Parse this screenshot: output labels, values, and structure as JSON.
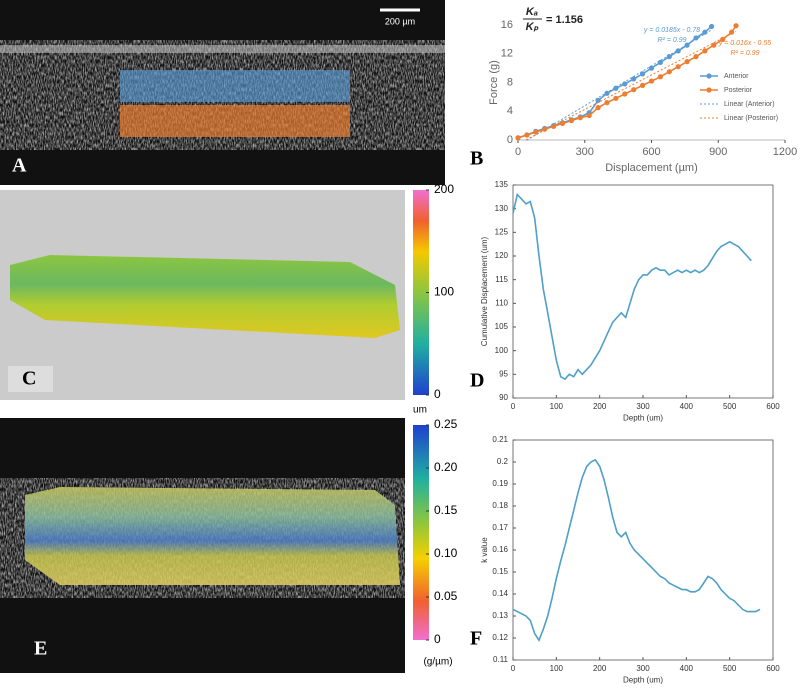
{
  "panel_labels": [
    "A",
    "B",
    "C",
    "D",
    "E",
    "F"
  ],
  "scale_bar": "200 µm",
  "colorbars": [
    {
      "ticks": [
        0,
        100,
        200
      ]
    },
    {
      "unit_top": "um",
      "unit_bottom": "(g/µm)",
      "ticks": [
        0,
        0.05,
        {
          "value": 0.1,
          "label": "0.10"
        },
        0.15,
        {
          "value": 0.2,
          "label": "0.20"
        },
        0.25
      ]
    }
  ],
  "chart_data": [
    {
      "type": "line",
      "xlabel": "Displacement (µm)",
      "ylabel": "Force (g)",
      "xlim": [
        0,
        1200
      ],
      "xticks": [
        0,
        300,
        600,
        900,
        1200
      ],
      "ylim": [
        0,
        16
      ],
      "yticks": [
        0,
        4,
        8,
        12,
        16
      ],
      "legend": "right",
      "ratio": {
        "numerator": "Kₐ",
        "denominator": "Kₚ",
        "value": "= 1.156"
      },
      "annotations": [
        {
          "text": "y = 0.0185x - 0.78",
          "color": "#5b9bd5"
        },
        {
          "text": "R² = 0.99",
          "color": "#5b9bd5"
        },
        {
          "text": "y = 0.016x - 0.55",
          "color": "#ed7d31"
        },
        {
          "text": "R² = 0.99",
          "color": "#ed7d31"
        }
      ],
      "series": [
        {
          "name": "Anterior",
          "color": "#5b9bd5",
          "marker": true,
          "x": [
            0,
            40,
            80,
            120,
            160,
            200,
            240,
            280,
            320,
            360,
            400,
            440,
            480,
            520,
            560,
            600,
            640,
            680,
            720,
            760,
            800,
            840,
            870
          ],
          "values": [
            0.3,
            0.7,
            1.2,
            1.6,
            2.0,
            2.4,
            2.8,
            3.2,
            3.8,
            5.5,
            6.5,
            7.2,
            7.8,
            8.5,
            9.2,
            10.0,
            10.8,
            11.6,
            12.4,
            13.2,
            14.2,
            15.0,
            15.8
          ]
        },
        {
          "name": "Posterior",
          "color": "#ed7d31",
          "marker": true,
          "x": [
            0,
            40,
            80,
            120,
            160,
            200,
            240,
            280,
            320,
            360,
            400,
            440,
            480,
            520,
            560,
            600,
            640,
            680,
            720,
            760,
            800,
            840,
            880,
            920,
            960,
            980
          ],
          "values": [
            0.3,
            0.7,
            1.1,
            1.5,
            1.9,
            2.3,
            2.7,
            3.1,
            3.4,
            4.5,
            5.2,
            5.8,
            6.4,
            7.0,
            7.6,
            8.2,
            8.8,
            9.5,
            10.2,
            10.9,
            11.6,
            12.4,
            13.2,
            14.0,
            15.0,
            15.9
          ]
        },
        {
          "name": "Linear (Anterior)",
          "color": "#5b9bd5",
          "dash": true,
          "x": [
            40,
            870
          ],
          "values": [
            -0.04,
            15.32
          ]
        },
        {
          "name": "Linear (Posterior)",
          "color": "#ed7d31",
          "dash": true,
          "x": [
            35,
            980
          ],
          "values": [
            0.01,
            15.13
          ]
        }
      ]
    },
    {
      "type": "line",
      "xlabel": "Depth (um)",
      "ylabel": "Cumulative Displacement (um)",
      "color": "#4f9fc8",
      "xlim": [
        0,
        600
      ],
      "xticks": [
        0,
        100,
        200,
        300,
        400,
        500,
        600
      ],
      "ylim": [
        90,
        135
      ],
      "yticks": [
        90,
        95,
        100,
        105,
        110,
        115,
        120,
        125,
        130,
        135
      ],
      "x": [
        0,
        10,
        20,
        30,
        40,
        50,
        60,
        70,
        80,
        90,
        100,
        110,
        120,
        130,
        140,
        150,
        160,
        170,
        180,
        190,
        200,
        210,
        220,
        230,
        240,
        250,
        260,
        270,
        280,
        290,
        300,
        310,
        320,
        330,
        340,
        350,
        360,
        370,
        380,
        390,
        400,
        410,
        420,
        430,
        440,
        450,
        460,
        470,
        480,
        490,
        500,
        510,
        520,
        530,
        540,
        550
      ],
      "values": [
        129,
        133,
        132,
        131,
        131.5,
        128,
        120,
        113,
        108,
        103,
        98,
        94.5,
        94,
        95,
        94.5,
        96,
        95,
        96,
        97,
        98.5,
        100,
        102,
        104,
        106,
        107,
        108,
        107,
        110,
        113,
        115,
        116,
        116,
        117,
        117.5,
        117,
        117,
        116,
        116.5,
        117,
        116.5,
        117,
        116.5,
        117,
        116.5,
        117,
        118,
        119.5,
        121,
        122,
        122.5,
        123,
        122.5,
        122,
        121,
        120,
        119
      ]
    },
    {
      "type": "line",
      "xlabel": "Depth (um)",
      "ylabel": "k value",
      "color": "#4f9fc8",
      "xlim": [
        0,
        600
      ],
      "xticks": [
        0,
        100,
        200,
        300,
        400,
        500,
        600
      ],
      "ylim": [
        0.11,
        0.21
      ],
      "yticks": [
        0.11,
        0.12,
        0.13,
        0.14,
        0.15,
        0.16,
        0.17,
        0.18,
        0.19,
        0.2,
        0.21
      ],
      "x": [
        0,
        10,
        20,
        30,
        40,
        50,
        60,
        70,
        80,
        90,
        100,
        110,
        120,
        130,
        140,
        150,
        160,
        170,
        180,
        190,
        200,
        210,
        220,
        230,
        240,
        250,
        260,
        270,
        280,
        290,
        300,
        310,
        320,
        330,
        340,
        350,
        360,
        370,
        380,
        390,
        400,
        410,
        420,
        430,
        440,
        450,
        460,
        470,
        480,
        490,
        500,
        510,
        520,
        530,
        540,
        550,
        560,
        570
      ],
      "values": [
        0.133,
        0.132,
        0.131,
        0.13,
        0.128,
        0.122,
        0.119,
        0.124,
        0.13,
        0.138,
        0.147,
        0.155,
        0.162,
        0.17,
        0.178,
        0.186,
        0.193,
        0.198,
        0.2,
        0.201,
        0.198,
        0.192,
        0.184,
        0.175,
        0.168,
        0.166,
        0.168,
        0.163,
        0.16,
        0.158,
        0.156,
        0.154,
        0.152,
        0.15,
        0.148,
        0.147,
        0.145,
        0.144,
        0.143,
        0.142,
        0.142,
        0.141,
        0.141,
        0.142,
        0.145,
        0.148,
        0.147,
        0.145,
        0.142,
        0.14,
        0.138,
        0.137,
        0.135,
        0.133,
        0.132,
        0.132,
        0.132,
        0.133
      ]
    }
  ]
}
